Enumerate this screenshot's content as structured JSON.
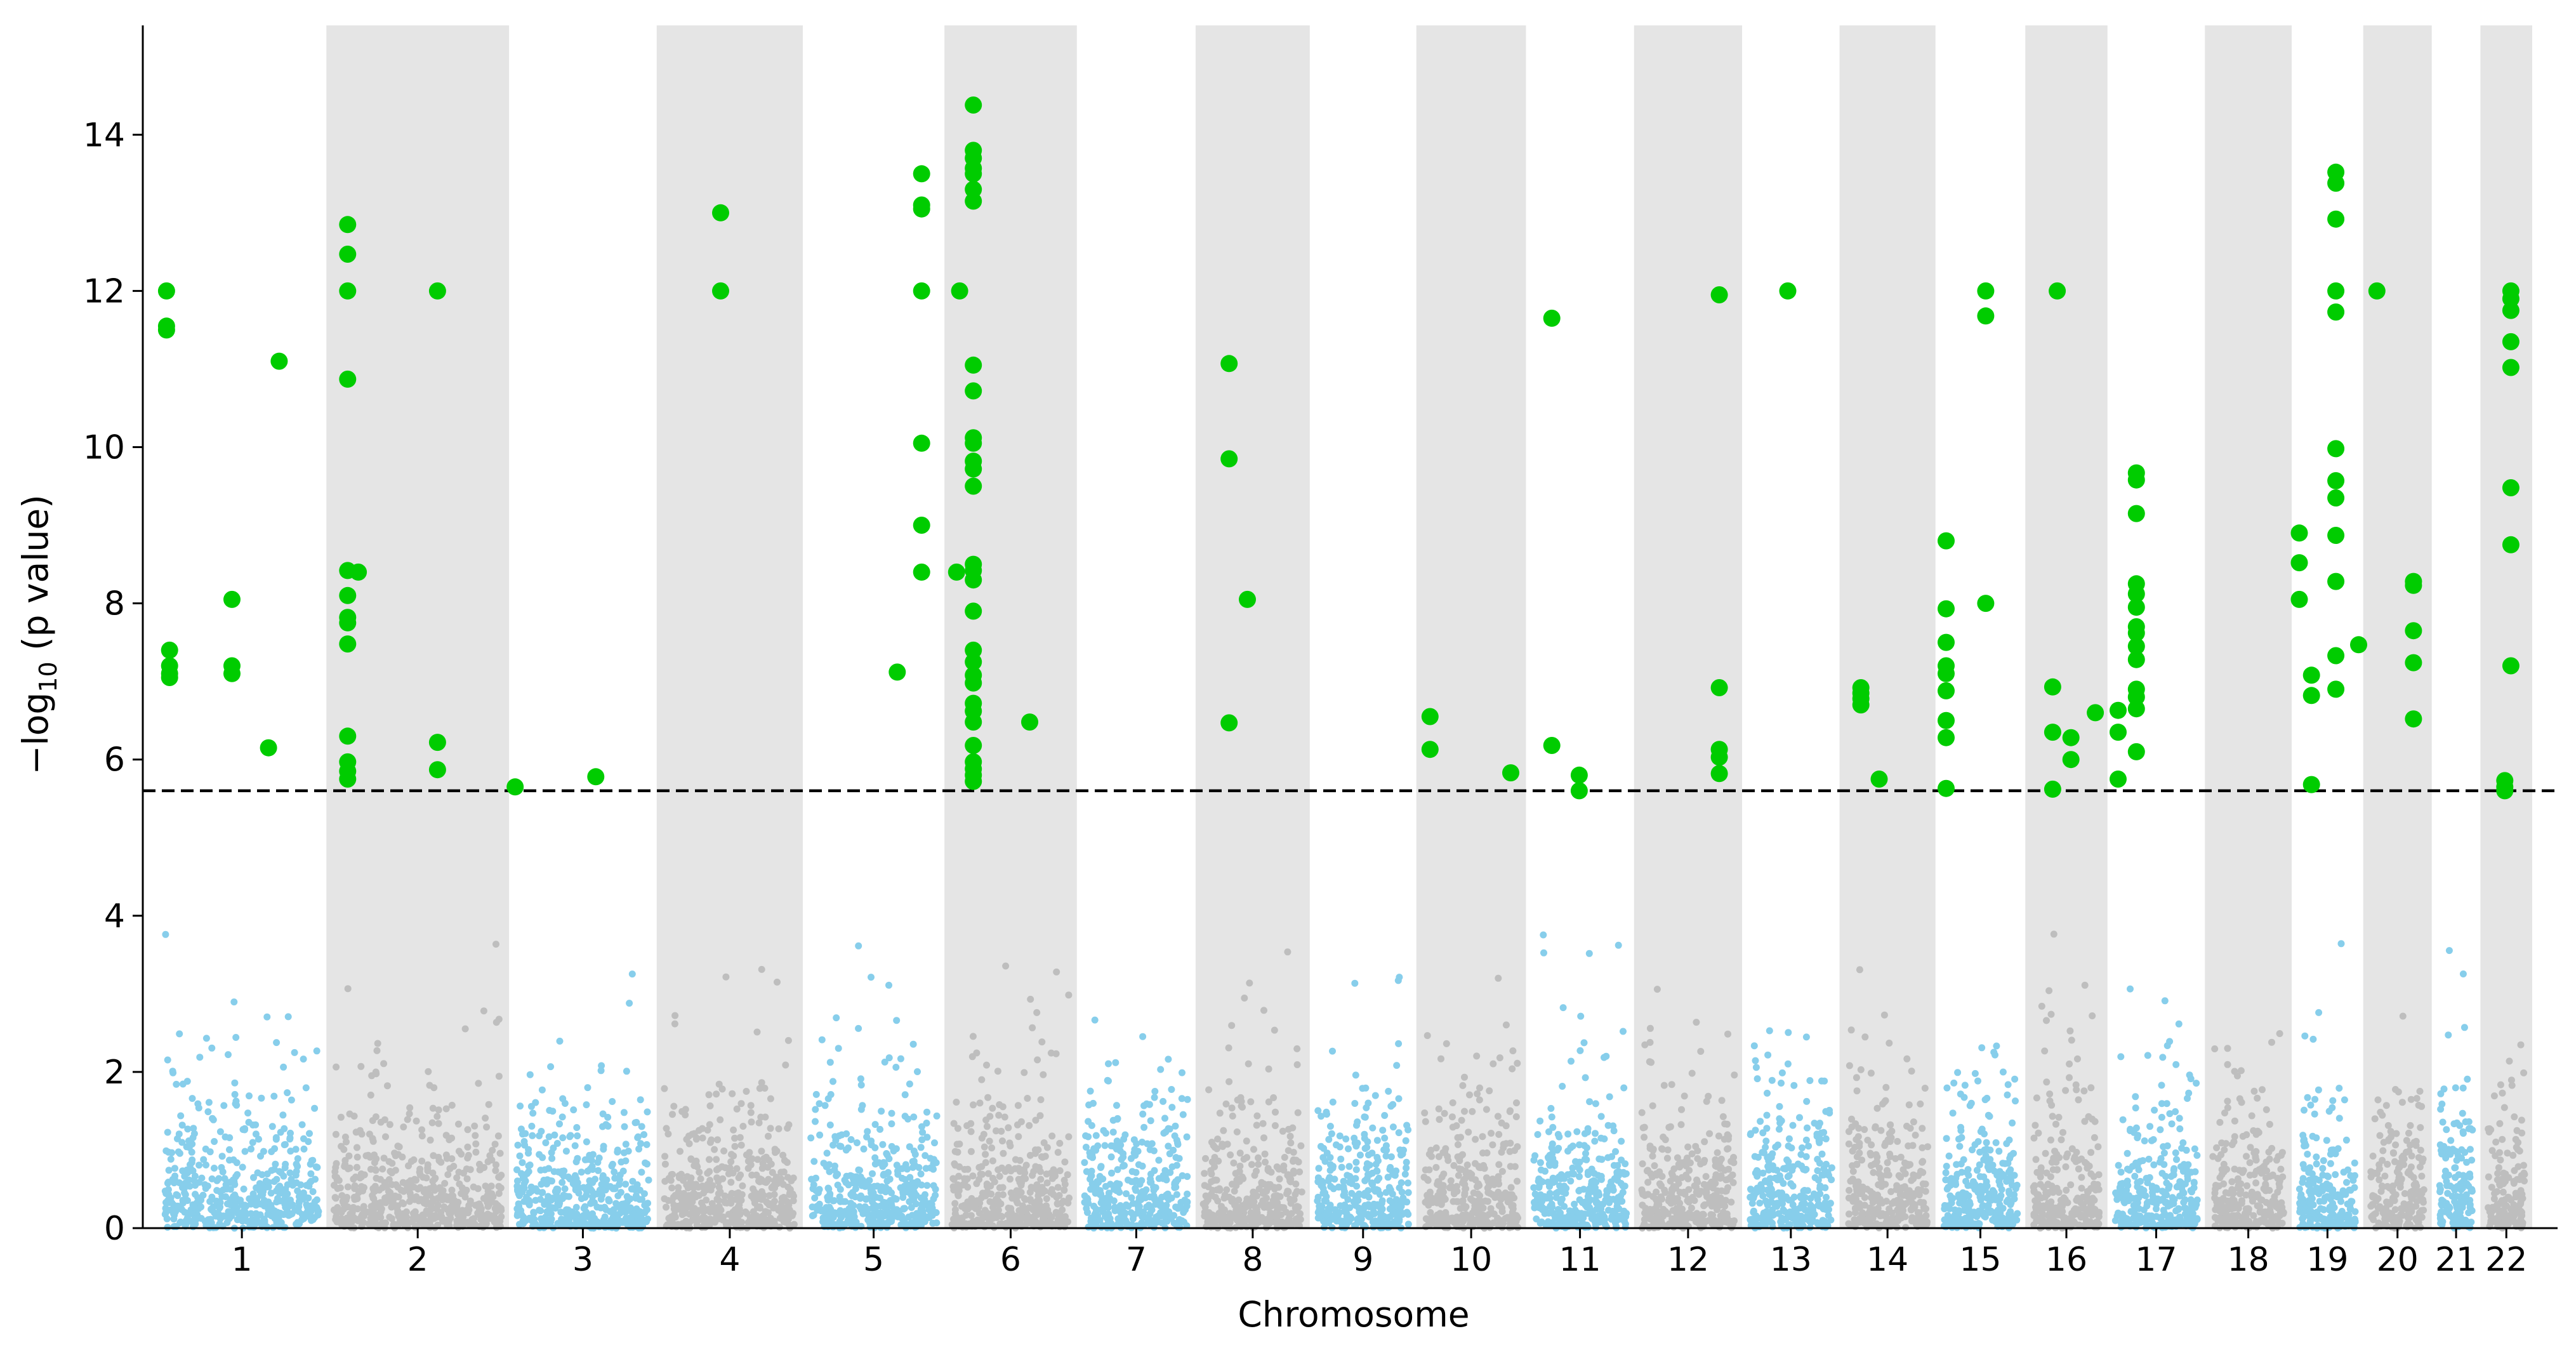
{
  "chart_data": {
    "type": "scatter",
    "subtype": "manhattan",
    "title": "",
    "xlabel": "Chromosome",
    "ylabel_parts": {
      "prefix": "−log",
      "subscript": "10",
      "suffix": " (p value)"
    },
    "ylim": [
      0,
      15.4
    ],
    "yticks": [
      0,
      2,
      4,
      6,
      8,
      10,
      12,
      14
    ],
    "threshold": 5.6,
    "colors": {
      "odd_chrom": "#87ceeb",
      "even_chrom": "#bebebe",
      "significant": "#00cc00",
      "even_band": "#e5e5e5",
      "threshold_line": "#000000"
    },
    "chromosomes": [
      {
        "label": "1",
        "start": 0.0,
        "end": 11.1,
        "sig": [
          [
            0.6,
            12.0
          ],
          [
            0.6,
            11.5
          ],
          [
            0.6,
            11.55
          ],
          [
            0.8,
            7.4
          ],
          [
            0.8,
            7.2
          ],
          [
            0.8,
            7.1
          ],
          [
            0.8,
            7.05
          ],
          [
            4.9,
            8.05
          ],
          [
            4.9,
            7.2
          ],
          [
            4.9,
            7.1
          ],
          [
            7.3,
            6.15
          ],
          [
            8.0,
            11.1
          ]
        ]
      },
      {
        "label": "2",
        "start": 11.1,
        "end": 23.1,
        "sig": [
          [
            1.4,
            12.85
          ],
          [
            1.4,
            12.47
          ],
          [
            1.4,
            12.0
          ],
          [
            1.4,
            10.87
          ],
          [
            1.4,
            8.42
          ],
          [
            1.4,
            8.1
          ],
          [
            1.4,
            7.82
          ],
          [
            1.4,
            7.75
          ],
          [
            1.4,
            7.48
          ],
          [
            1.4,
            6.3
          ],
          [
            1.4,
            5.97
          ],
          [
            1.4,
            5.85
          ],
          [
            1.4,
            5.75
          ],
          [
            2.1,
            8.4
          ],
          [
            7.3,
            12.0
          ],
          [
            7.3,
            6.22
          ],
          [
            7.3,
            5.87
          ]
        ]
      },
      {
        "label": "3",
        "start": 23.1,
        "end": 32.8,
        "sig": [
          [
            0.4,
            5.65
          ],
          [
            5.7,
            5.78
          ]
        ]
      },
      {
        "label": "4",
        "start": 32.8,
        "end": 42.4,
        "sig": [
          [
            4.2,
            13.0
          ],
          [
            4.2,
            12.0
          ]
        ]
      },
      {
        "label": "5",
        "start": 42.4,
        "end": 51.7,
        "sig": [
          [
            6.2,
            7.12
          ],
          [
            7.8,
            13.5
          ],
          [
            7.8,
            13.1
          ],
          [
            7.8,
            13.05
          ],
          [
            7.8,
            12.0
          ],
          [
            7.8,
            10.05
          ],
          [
            7.8,
            9.0
          ],
          [
            7.8,
            8.4
          ]
        ]
      },
      {
        "label": "6",
        "start": 51.7,
        "end": 60.4,
        "sig": [
          [
            0.8,
            8.4
          ],
          [
            1.0,
            12.0
          ],
          [
            1.9,
            14.38
          ],
          [
            1.9,
            13.8
          ],
          [
            1.9,
            13.7
          ],
          [
            1.9,
            13.57
          ],
          [
            1.9,
            13.5
          ],
          [
            1.9,
            13.3
          ],
          [
            1.9,
            13.15
          ],
          [
            1.9,
            11.05
          ],
          [
            1.9,
            10.72
          ],
          [
            1.9,
            10.12
          ],
          [
            1.9,
            10.05
          ],
          [
            1.9,
            9.82
          ],
          [
            1.9,
            9.72
          ],
          [
            1.9,
            9.5
          ],
          [
            1.9,
            8.5
          ],
          [
            1.9,
            8.42
          ],
          [
            1.9,
            8.3
          ],
          [
            1.9,
            7.9
          ],
          [
            1.9,
            7.4
          ],
          [
            1.9,
            7.25
          ],
          [
            1.9,
            7.08
          ],
          [
            1.9,
            6.98
          ],
          [
            1.9,
            6.72
          ],
          [
            1.9,
            6.62
          ],
          [
            1.9,
            6.48
          ],
          [
            1.9,
            6.18
          ],
          [
            1.9,
            5.97
          ],
          [
            1.9,
            5.88
          ],
          [
            1.9,
            5.8
          ],
          [
            1.9,
            5.72
          ],
          [
            5.6,
            6.48
          ]
        ]
      },
      {
        "label": "7",
        "start": 60.4,
        "end": 68.2,
        "sig": []
      },
      {
        "label": "8",
        "start": 68.2,
        "end": 75.7,
        "sig": [
          [
            2.2,
            11.07
          ],
          [
            2.2,
            9.85
          ],
          [
            2.2,
            6.47
          ],
          [
            3.4,
            8.05
          ]
        ]
      },
      {
        "label": "9",
        "start": 75.7,
        "end": 82.7,
        "sig": []
      },
      {
        "label": "10",
        "start": 82.7,
        "end": 89.9,
        "sig": [
          [
            0.9,
            6.55
          ],
          [
            0.9,
            6.13
          ],
          [
            6.2,
            5.83
          ]
        ]
      },
      {
        "label": "11",
        "start": 89.9,
        "end": 97.0,
        "sig": [
          [
            1.7,
            11.65
          ],
          [
            1.7,
            6.18
          ],
          [
            3.5,
            5.8
          ],
          [
            3.5,
            5.6
          ]
        ]
      },
      {
        "label": "12",
        "start": 97.0,
        "end": 104.1,
        "sig": [
          [
            5.6,
            11.95
          ],
          [
            5.6,
            6.92
          ],
          [
            5.6,
            6.13
          ],
          [
            5.6,
            6.03
          ],
          [
            5.6,
            5.82
          ]
        ]
      },
      {
        "label": "13",
        "start": 104.1,
        "end": 110.5,
        "sig": [
          [
            3.0,
            12.0
          ]
        ]
      },
      {
        "label": "14",
        "start": 110.5,
        "end": 116.8,
        "sig": [
          [
            1.4,
            6.92
          ],
          [
            1.4,
            6.85
          ],
          [
            1.4,
            6.78
          ],
          [
            1.4,
            6.7
          ],
          [
            2.6,
            5.75
          ]
        ]
      },
      {
        "label": "15",
        "start": 116.8,
        "end": 122.7,
        "sig": [
          [
            0.7,
            8.8
          ],
          [
            0.7,
            7.93
          ],
          [
            0.7,
            7.5
          ],
          [
            0.7,
            7.2
          ],
          [
            0.7,
            7.1
          ],
          [
            0.7,
            6.88
          ],
          [
            0.7,
            6.5
          ],
          [
            0.7,
            6.28
          ],
          [
            0.7,
            5.63
          ],
          [
            3.3,
            12.0
          ],
          [
            3.3,
            11.68
          ],
          [
            3.3,
            8.0
          ]
        ]
      },
      {
        "label": "16",
        "start": 122.7,
        "end": 128.1,
        "sig": [
          [
            2.1,
            12.0
          ],
          [
            1.8,
            6.93
          ],
          [
            1.8,
            6.35
          ],
          [
            1.8,
            5.62
          ],
          [
            3.0,
            6.28
          ],
          [
            3.0,
            6.0
          ],
          [
            4.6,
            6.6
          ]
        ]
      },
      {
        "label": "17",
        "start": 128.1,
        "end": 134.5,
        "sig": [
          [
            0.7,
            6.63
          ],
          [
            0.7,
            6.35
          ],
          [
            0.7,
            5.75
          ],
          [
            1.9,
            9.67
          ],
          [
            1.9,
            9.58
          ],
          [
            1.9,
            9.15
          ],
          [
            1.9,
            8.25
          ],
          [
            1.9,
            8.12
          ],
          [
            1.9,
            7.95
          ],
          [
            1.9,
            7.62
          ],
          [
            1.9,
            7.45
          ],
          [
            1.9,
            7.28
          ],
          [
            1.9,
            6.9
          ],
          [
            1.9,
            6.8
          ],
          [
            1.9,
            6.65
          ],
          [
            1.9,
            6.1
          ],
          [
            1.9,
            7.7
          ]
        ]
      },
      {
        "label": "18",
        "start": 134.5,
        "end": 140.2,
        "sig": []
      },
      {
        "label": "19",
        "start": 140.2,
        "end": 144.9,
        "sig": [
          [
            0.5,
            8.9
          ],
          [
            0.5,
            8.52
          ],
          [
            0.5,
            8.05
          ],
          [
            1.3,
            7.08
          ],
          [
            1.3,
            6.82
          ],
          [
            1.3,
            5.68
          ],
          [
            2.9,
            13.52
          ],
          [
            2.9,
            13.38
          ],
          [
            2.9,
            12.92
          ],
          [
            2.9,
            12.0
          ],
          [
            2.9,
            11.73
          ],
          [
            2.9,
            9.98
          ],
          [
            2.9,
            9.57
          ],
          [
            2.9,
            9.35
          ],
          [
            2.9,
            8.87
          ],
          [
            2.9,
            8.28
          ],
          [
            2.9,
            7.33
          ],
          [
            2.9,
            6.9
          ],
          [
            4.4,
            7.47
          ]
        ]
      },
      {
        "label": "20",
        "start": 144.9,
        "end": 149.4,
        "sig": [
          [
            0.9,
            12.0
          ],
          [
            3.3,
            8.28
          ],
          [
            3.3,
            8.23
          ],
          [
            3.3,
            7.65
          ],
          [
            3.3,
            7.24
          ],
          [
            3.3,
            6.52
          ]
        ]
      },
      {
        "label": "21",
        "start": 149.4,
        "end": 152.6,
        "sig": []
      },
      {
        "label": "22",
        "start": 152.6,
        "end": 156.0,
        "sig": [
          [
            2.0,
            12.0
          ],
          [
            2.0,
            11.9
          ],
          [
            2.0,
            11.75
          ],
          [
            2.0,
            11.35
          ],
          [
            2.0,
            11.02
          ],
          [
            2.0,
            9.48
          ],
          [
            2.0,
            8.75
          ],
          [
            2.0,
            7.2
          ],
          [
            1.6,
            5.73
          ],
          [
            1.6,
            5.65
          ],
          [
            1.6,
            5.6
          ]
        ]
      }
    ]
  }
}
